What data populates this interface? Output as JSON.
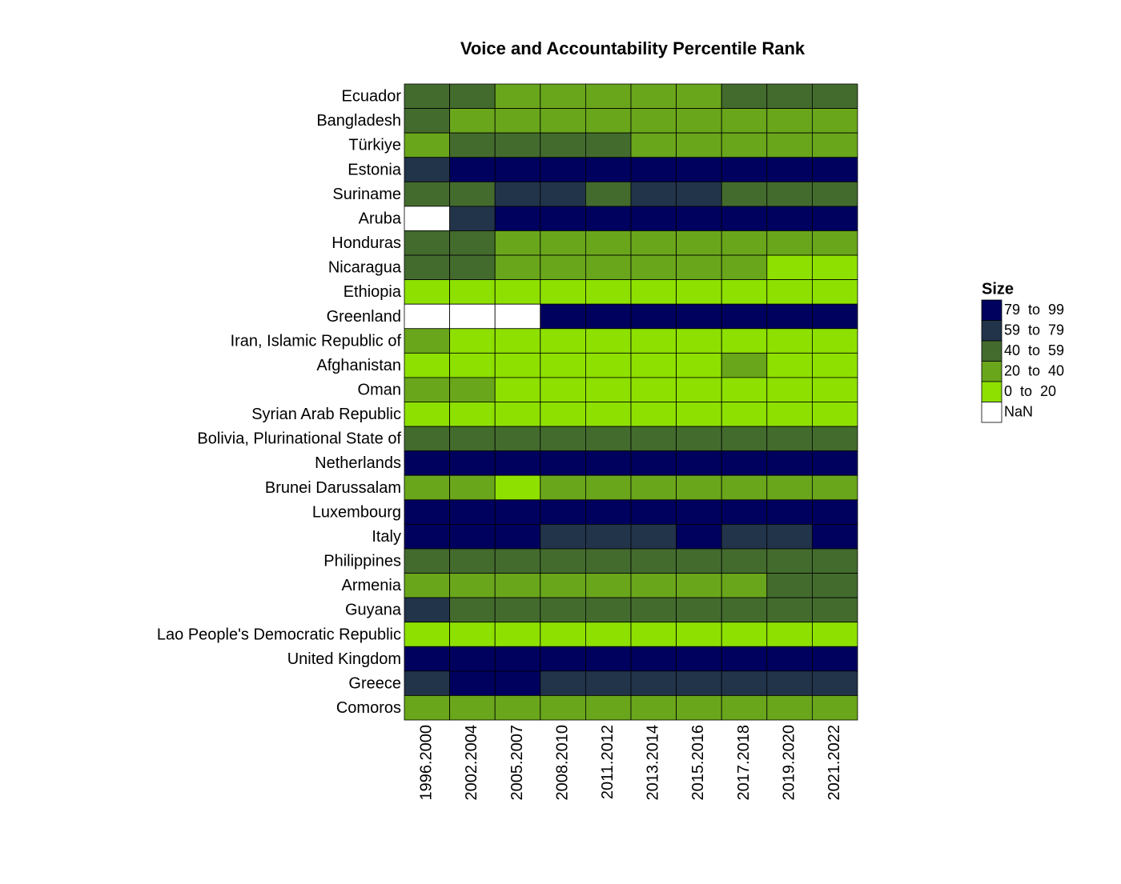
{
  "chart_data": {
    "type": "heatmap",
    "title": "Voice and Accountability Percentile Rank",
    "x": [
      "1996.2000",
      "2002.2004",
      "2005.2007",
      "2008.2010",
      "2011.2012",
      "2013.2014",
      "2015.2016",
      "2017.2018",
      "2019.2020",
      "2021.2022"
    ],
    "y": [
      "Ecuador",
      "Bangladesh",
      "Türkiye",
      "Estonia",
      "Suriname",
      "Aruba",
      "Honduras",
      "Nicaragua",
      "Ethiopia",
      "Greenland",
      "Iran, Islamic Republic of",
      "Afghanistan",
      "Oman",
      "Syrian Arab Republic",
      "Bolivia, Plurinational State of",
      "Netherlands",
      "Brunei Darussalam",
      "Luxembourg",
      "Italy",
      "Philippines",
      "Armenia",
      "Guyana",
      "Lao People's Democratic Republic",
      "United Kingdom",
      "Greece",
      "Comoros"
    ],
    "values": [
      [
        50,
        50,
        30,
        30,
        30,
        30,
        30,
        50,
        50,
        50
      ],
      [
        50,
        30,
        30,
        30,
        30,
        30,
        30,
        30,
        30,
        30
      ],
      [
        30,
        50,
        50,
        50,
        50,
        30,
        30,
        30,
        30,
        30
      ],
      [
        70,
        90,
        90,
        90,
        90,
        90,
        90,
        90,
        90,
        90
      ],
      [
        50,
        50,
        70,
        70,
        50,
        70,
        70,
        50,
        50,
        50
      ],
      [
        null,
        70,
        90,
        90,
        90,
        90,
        90,
        90,
        90,
        90
      ],
      [
        50,
        50,
        30,
        30,
        30,
        30,
        30,
        30,
        30,
        30
      ],
      [
        50,
        50,
        30,
        30,
        30,
        30,
        30,
        30,
        10,
        10
      ],
      [
        10,
        10,
        10,
        10,
        10,
        10,
        10,
        10,
        10,
        10
      ],
      [
        null,
        null,
        null,
        90,
        90,
        90,
        90,
        90,
        90,
        90
      ],
      [
        30,
        10,
        10,
        10,
        10,
        10,
        10,
        10,
        10,
        10
      ],
      [
        10,
        10,
        10,
        10,
        10,
        10,
        10,
        30,
        10,
        10
      ],
      [
        30,
        30,
        10,
        10,
        10,
        10,
        10,
        10,
        10,
        10
      ],
      [
        10,
        10,
        10,
        10,
        10,
        10,
        10,
        10,
        10,
        10
      ],
      [
        50,
        50,
        50,
        50,
        50,
        50,
        50,
        50,
        50,
        50
      ],
      [
        90,
        90,
        90,
        90,
        90,
        90,
        90,
        90,
        90,
        90
      ],
      [
        30,
        30,
        10,
        30,
        30,
        30,
        30,
        30,
        30,
        30
      ],
      [
        90,
        90,
        90,
        90,
        90,
        90,
        90,
        90,
        90,
        90
      ],
      [
        90,
        90,
        90,
        70,
        70,
        70,
        90,
        70,
        70,
        90
      ],
      [
        50,
        50,
        50,
        50,
        50,
        50,
        50,
        50,
        50,
        50
      ],
      [
        30,
        30,
        30,
        30,
        30,
        30,
        30,
        30,
        50,
        50
      ],
      [
        70,
        50,
        50,
        50,
        50,
        50,
        50,
        50,
        50,
        50
      ],
      [
        10,
        10,
        10,
        10,
        10,
        10,
        10,
        10,
        10,
        10
      ],
      [
        90,
        90,
        90,
        90,
        90,
        90,
        90,
        90,
        90,
        90
      ],
      [
        70,
        90,
        90,
        70,
        70,
        70,
        70,
        70,
        70,
        70
      ],
      [
        30,
        30,
        30,
        30,
        30,
        30,
        30,
        30,
        30,
        30
      ]
    ],
    "legend": {
      "title": "Size",
      "items": [
        {
          "label": "79  to  99",
          "min": 79,
          "max": 99,
          "color": "#00005e"
        },
        {
          "label": "59  to  79",
          "min": 59,
          "max": 79,
          "color": "#22344a"
        },
        {
          "label": "40  to  59",
          "min": 40,
          "max": 59,
          "color": "#436b2e"
        },
        {
          "label": "20  to  40",
          "min": 20,
          "max": 40,
          "color": "#69a61b"
        },
        {
          "label": "0  to  20",
          "min": 0,
          "max": 20,
          "color": "#8ee000"
        },
        {
          "label": "NaN",
          "color": "#ffffff"
        }
      ]
    }
  }
}
